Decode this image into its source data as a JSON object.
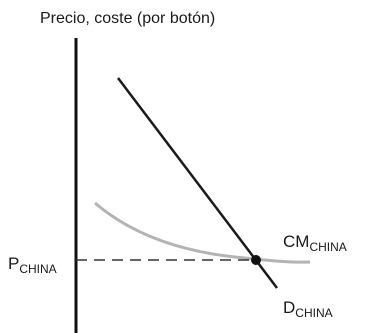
{
  "axis": {
    "y_label": "Precio, coste (por botón)"
  },
  "labels": {
    "price_main": "P",
    "price_sub": "CHINA",
    "cost_main": "CM",
    "cost_sub": "CHINA",
    "demand_main": "D",
    "demand_sub": "CHINA"
  },
  "colors": {
    "axis": "#111111",
    "demand_line": "#1a1a1a",
    "cost_curve": "#b3b3b3",
    "price_line": "#333333",
    "equilibrium_point": "#111111"
  }
}
